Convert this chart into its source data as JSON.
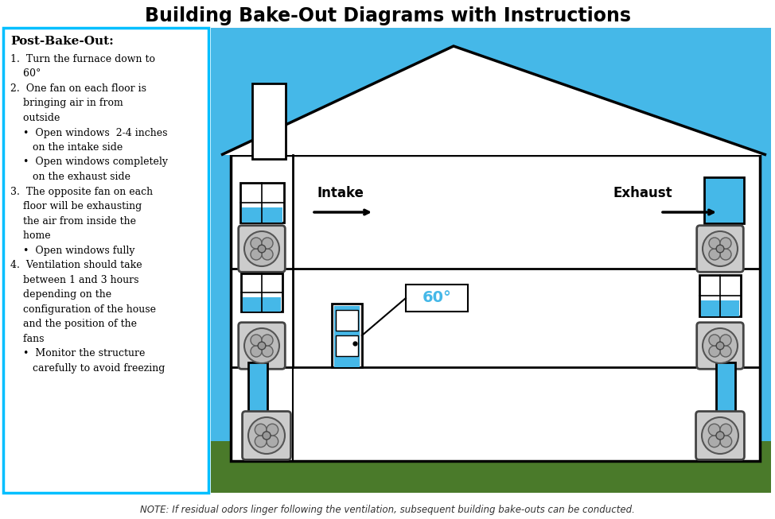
{
  "title": "Building Bake-Out Diagrams with Instructions",
  "title_fontsize": 18,
  "title_fontweight": "bold",
  "note_text": "NOTE: If residual odors linger following the ventilation, subsequent building bake-outs can be conducted.",
  "sidebar_title": "Post-Bake-Out:",
  "bg_color": "#45B8E8",
  "house_fill": "#FFFFFF",
  "sidebar_bg": "#FFFFFF",
  "sidebar_border": "#00BFFF",
  "grass_color": "#4A7A2A",
  "window_blue": "#45B8E8",
  "temp_label": "60°",
  "intake_label": "Intake",
  "exhaust_label": "Exhaust",
  "sidebar_text": "1.  Turn the furnace down to\n    60°\n2.  One fan on each floor is\n    bringing air in from\n    outside\n    •  Open windows  2-4 inches\n       on the intake side\n    •  Open windows completely\n       on the exhaust side\n3.  The opposite fan on each\n    floor will be exhausting\n    the air from inside the\n    home\n    •  Open windows fully\n4.  Ventilation should take\n    between 1 and 3 hours\n    depending on the\n    configuration of the house\n    and the position of the\n    fans\n    •  Monitor the structure\n       carefully to avoid freezing"
}
